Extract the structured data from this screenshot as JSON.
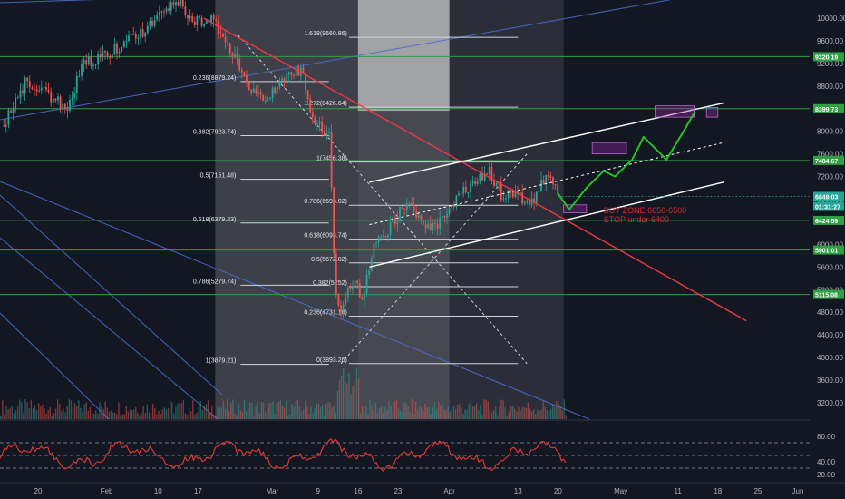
{
  "chart_data": {
    "type": "candlestick",
    "main_pane": {
      "price_axis_ticks": [
        "10000.00",
        "9600.00",
        "9200.00",
        "8800.00",
        "8400.00",
        "8000.00",
        "7600.00",
        "7200.00",
        "6800.00",
        "6400.00",
        "6000.00",
        "5600.00",
        "5200.00",
        "4800.00",
        "4400.00",
        "4000.00",
        "3600.00",
        "3200.00"
      ],
      "price_range": [
        3000,
        10200
      ],
      "time_axis_ticks": [
        {
          "label": "20",
          "date": "2020-01-20"
        },
        {
          "label": "Feb",
          "date": "2020-02-01"
        },
        {
          "label": "10",
          "date": "2020-02-10"
        },
        {
          "label": "17",
          "date": "2020-02-17"
        },
        {
          "label": "Mar",
          "date": "2020-03-01"
        },
        {
          "label": "9",
          "date": "2020-03-09"
        },
        {
          "label": "16",
          "date": "2020-03-16"
        },
        {
          "label": "23",
          "date": "2020-03-23"
        },
        {
          "label": "Apr",
          "date": "2020-04-01"
        },
        {
          "label": "13",
          "date": "2020-04-13"
        },
        {
          "label": "20",
          "date": "2020-04-20"
        },
        {
          "label": "May",
          "date": "2020-05-01"
        },
        {
          "label": "11",
          "date": "2020-05-11"
        },
        {
          "label": "18",
          "date": "2020-05-18"
        },
        {
          "label": "25",
          "date": "2020-05-25"
        },
        {
          "label": "Jun",
          "date": "2020-06-01"
        }
      ],
      "horizontal_levels": [
        {
          "price": 9320.19,
          "label": "9320.19"
        },
        {
          "price": 8399.73,
          "label": "8399.73"
        },
        {
          "price": 7484.67,
          "label": "7484.67"
        },
        {
          "price": 6424.59,
          "label": "6424.59"
        },
        {
          "price": 5901.01,
          "label": "5901.01"
        },
        {
          "price": 5115.08,
          "label": "5115.08"
        }
      ],
      "current_price": {
        "price": 6849.03,
        "label": "6849.03",
        "countdown": "01:31:27"
      },
      "fib_retracement_left": [
        {
          "level": "0.236",
          "price": "8879.24"
        },
        {
          "level": "0.382",
          "price": "7923.74"
        },
        {
          "level": "0.5",
          "price": "7151.48"
        },
        {
          "level": "0.618",
          "price": "6379.23"
        },
        {
          "level": "0.786",
          "price": "5279.74"
        },
        {
          "level": "1",
          "price": "3879.21"
        }
      ],
      "fib_retracement_right": [
        {
          "level": "1.618",
          "price": "9660.86"
        },
        {
          "level": "1.272",
          "price": "8426.64"
        },
        {
          "level": "1",
          "price": "7456.38"
        },
        {
          "level": "0.786",
          "price": "6693.02"
        },
        {
          "level": "0.618",
          "price": "6093.74"
        },
        {
          "level": "0.5",
          "price": "5672.82"
        },
        {
          "level": "0.382",
          "price": "5252"
        },
        {
          "level": "0.236",
          "price": "4731.10"
        },
        {
          "level": "0",
          "price": "3893.26"
        }
      ],
      "annotations": [
        "BUY ZONE 6650-6500",
        "STOP under 6400"
      ],
      "price_path_jan_apr": [
        [
          "2020-01-14",
          8100
        ],
        [
          "2020-01-18",
          8900
        ],
        [
          "2020-01-21",
          8700
        ],
        [
          "2020-01-25",
          8400
        ],
        [
          "2020-01-28",
          9200
        ],
        [
          "2020-02-01",
          9350
        ],
        [
          "2020-02-05",
          9600
        ],
        [
          "2020-02-09",
          9900
        ],
        [
          "2020-02-11",
          10100
        ],
        [
          "2020-02-14",
          10300
        ],
        [
          "2020-02-16",
          9900
        ],
        [
          "2020-02-19",
          10000
        ],
        [
          "2020-02-22",
          9600
        ],
        [
          "2020-02-26",
          8800
        ],
        [
          "2020-02-29",
          8600
        ],
        [
          "2020-03-02",
          8800
        ],
        [
          "2020-03-06",
          9100
        ],
        [
          "2020-03-08",
          8200
        ],
        [
          "2020-03-11",
          7900
        ],
        [
          "2020-03-12",
          5200
        ],
        [
          "2020-03-13",
          4900
        ],
        [
          "2020-03-15",
          5300
        ],
        [
          "2020-03-17",
          5100
        ],
        [
          "2020-03-19",
          6100
        ],
        [
          "2020-03-21",
          6200
        ],
        [
          "2020-03-24",
          6700
        ],
        [
          "2020-03-26",
          6600
        ],
        [
          "2020-03-28",
          6300
        ],
        [
          "2020-03-31",
          6400
        ],
        [
          "2020-04-02",
          6800
        ],
        [
          "2020-04-06",
          7200
        ],
        [
          "2020-04-08",
          7300
        ],
        [
          "2020-04-10",
          6900
        ],
        [
          "2020-04-13",
          6900
        ],
        [
          "2020-04-15",
          6650
        ],
        [
          "2020-04-17",
          7100
        ],
        [
          "2020-04-19",
          7200
        ],
        [
          "2020-04-20",
          6850
        ]
      ]
    },
    "oscillator_pane": {
      "ticks": [
        "80.00",
        "40.00",
        "20.00"
      ],
      "levels": [
        30,
        50,
        70
      ]
    }
  }
}
